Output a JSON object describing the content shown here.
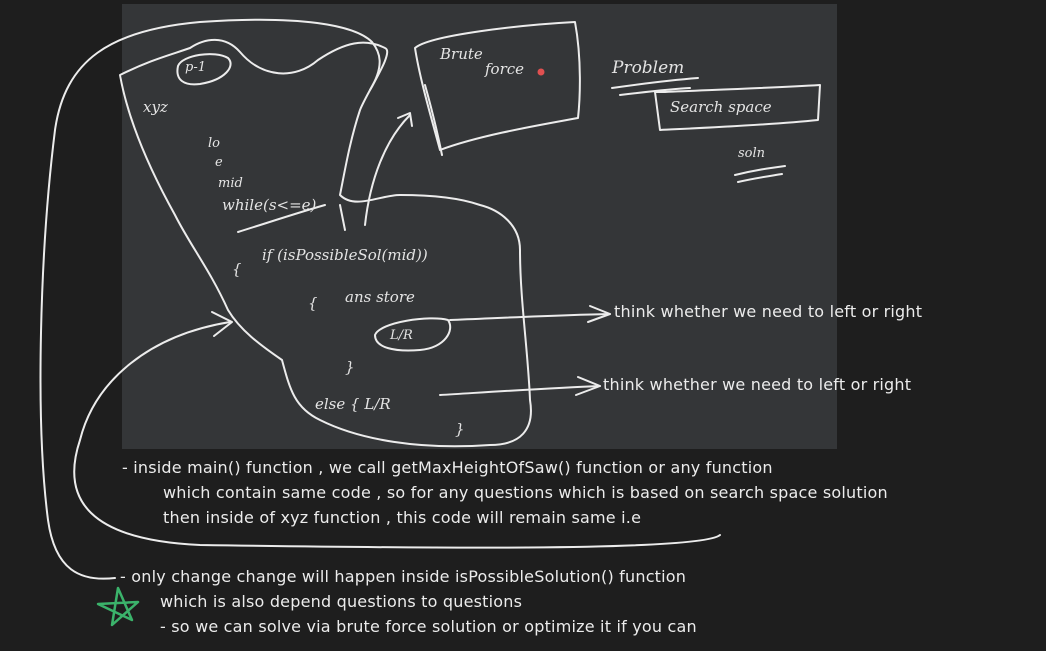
{
  "sketch": {
    "xyz_label": "xyz",
    "loop_lines": [
      "p-1",
      "lo",
      "e",
      "mid",
      "while(s<=e)"
    ],
    "if_line": "if (isPossibleSol(mid))",
    "open_brace": "{",
    "ans_line": "ans store",
    "left_right_box": "L/R",
    "close_brace": "}",
    "else_line": "else { L/R",
    "else_close": "}",
    "brute_force": [
      "Brute",
      "force"
    ],
    "problem": "Problem",
    "search_space": "Search space",
    "solution": "soln"
  },
  "annotations": {
    "arrow1": "think whether we need to left or right",
    "arrow2": "think whether we need to left or right"
  },
  "notes": {
    "line1": "- inside main() function , we call getMaxHeightOfSaw() function or any function",
    "line2": "which contain same code , so for any questions which is based on search space solution",
    "line3": "then inside of xyz function , this code will remain same i.e",
    "line4": "- only change change will happen inside isPossibleSolution() function",
    "line5": "which is also depend questions to questions",
    "line6": "- so we can solve via brute force solution or optimize it if you can"
  },
  "colors": {
    "background": "#1e1e1e",
    "panel": "#343638",
    "ink": "#ececec",
    "star": "#3bb36b",
    "dot": "#e05050"
  },
  "icons": [
    "star-icon",
    "arrow-icon"
  ]
}
